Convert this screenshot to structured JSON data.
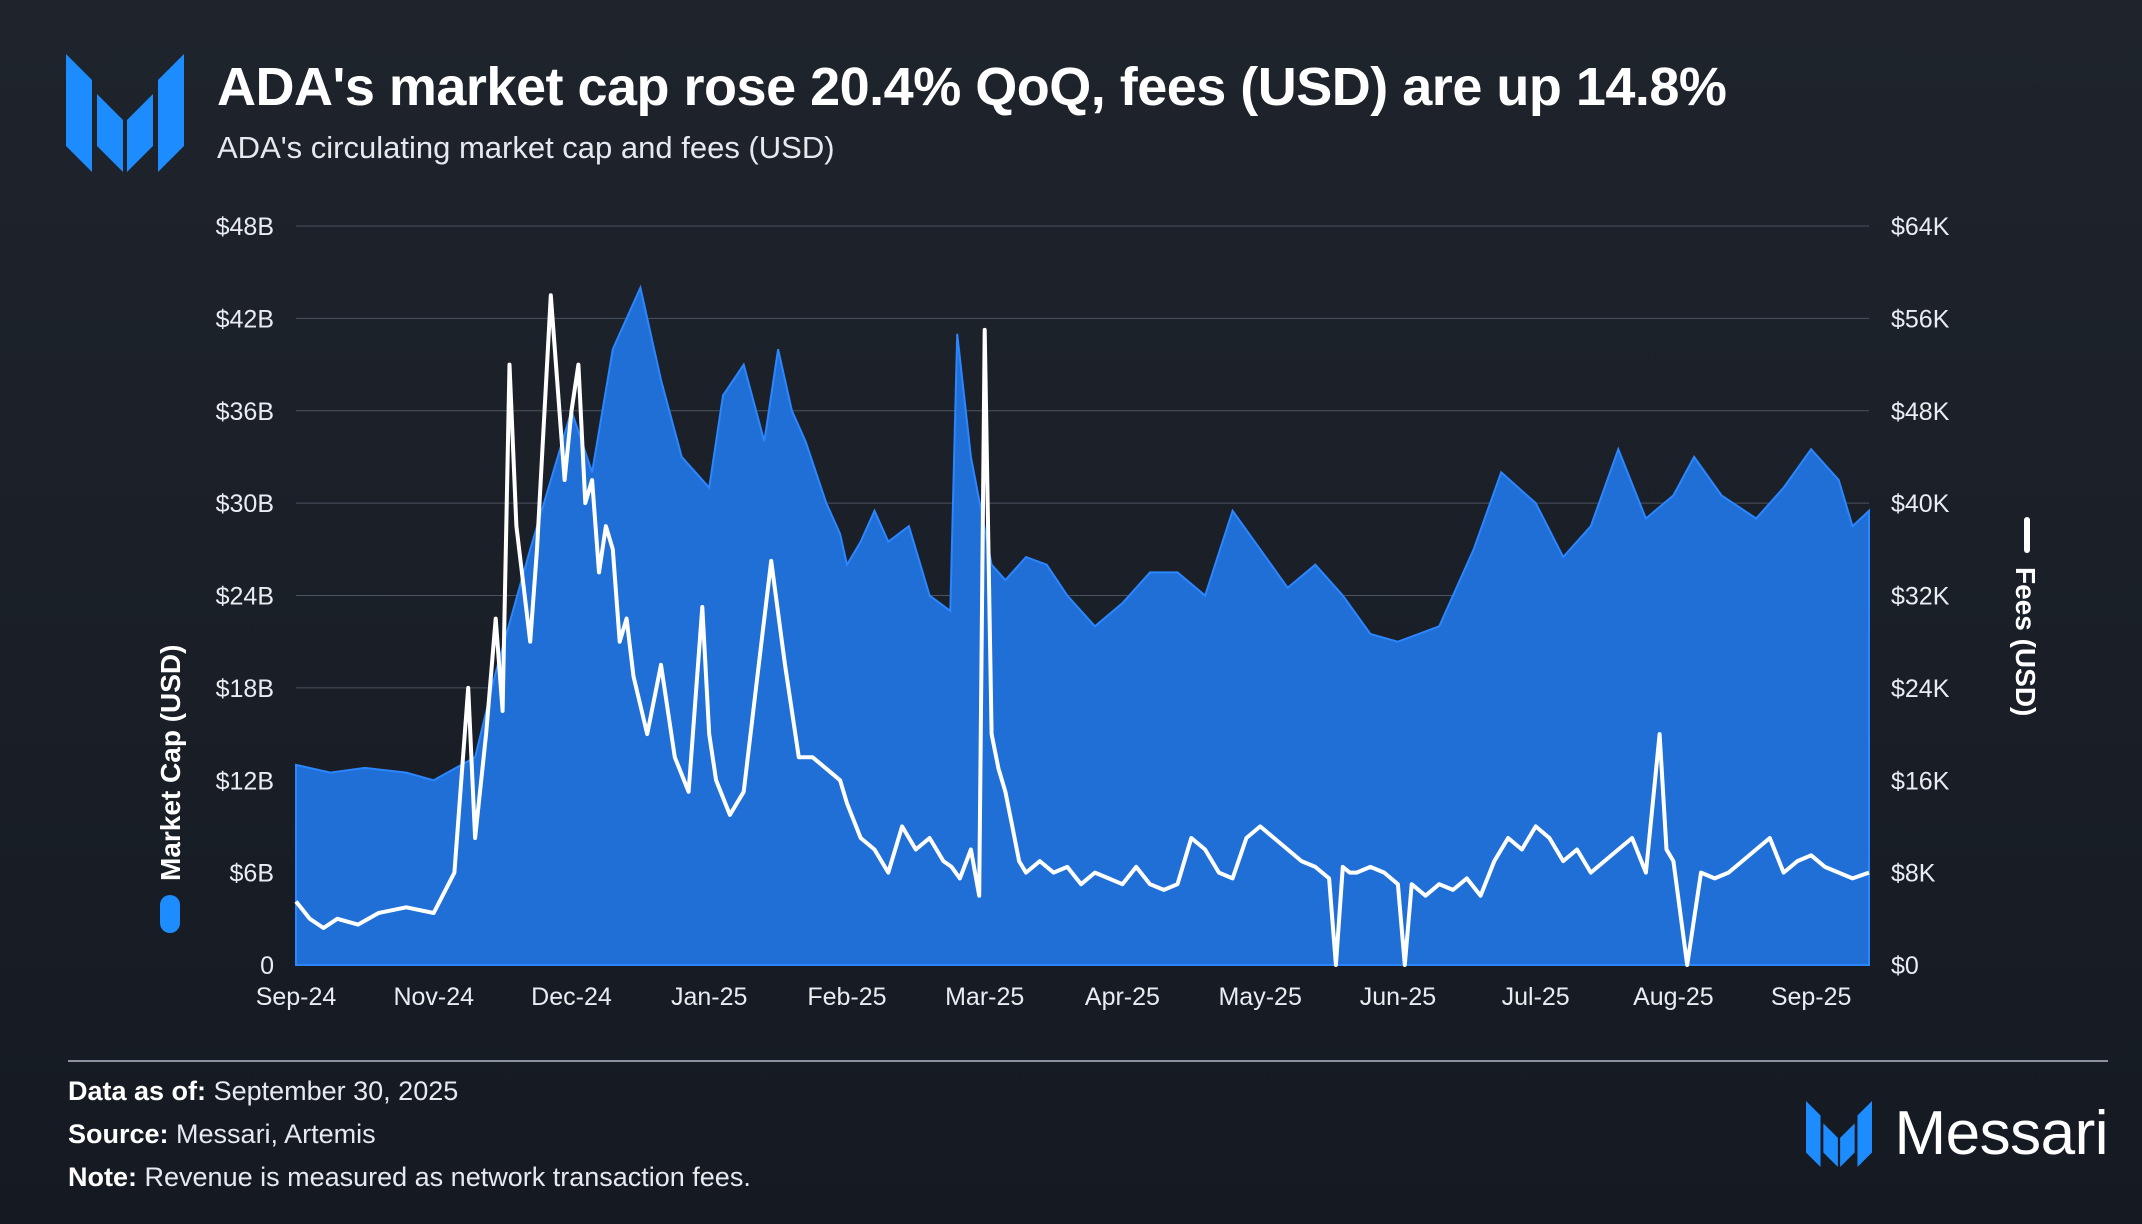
{
  "header": {
    "title": "ADA's market cap rose 20.4% QoQ, fees (USD) are up 14.8%",
    "subtitle": "ADA's circulating market cap and fees (USD)"
  },
  "colors": {
    "market_cap": "#1f6fd6",
    "market_cap_edge": "#2b86ff",
    "fees": "#ffffff",
    "brand_blue": "#1d8cff"
  },
  "chart_data": {
    "type": "area",
    "title": "ADA's circulating market cap and fees (USD)",
    "categories": [
      "Sep-24",
      "Nov-24",
      "Dec-24",
      "Jan-25",
      "Feb-25",
      "Mar-25",
      "Apr-25",
      "May-25",
      "Jun-25",
      "Jul-25",
      "Aug-25",
      "Sep-25"
    ],
    "ylabel": "Market Cap (USD)",
    "y2label": "Fees (USD)",
    "ylim": [
      0,
      48
    ],
    "y2lim": [
      0,
      64
    ],
    "yticks": [
      "0",
      "$6B",
      "$12B",
      "$18B",
      "$24B",
      "$30B",
      "$36B",
      "$42B",
      "$48B"
    ],
    "y2ticks": [
      "$0",
      "$8K",
      "$16K",
      "$24K",
      "$32K",
      "$40K",
      "$48K",
      "$56K",
      "$64K"
    ],
    "grid": true,
    "series": [
      {
        "name": "Market Cap (USD)",
        "unit": "$B",
        "axis": "left",
        "type": "area",
        "x": [
          0,
          0.25,
          0.5,
          0.8,
          1.0,
          1.3,
          1.45,
          1.7,
          2.0,
          2.15,
          2.3,
          2.5,
          2.65,
          2.8,
          3.0,
          3.1,
          3.25,
          3.4,
          3.5,
          3.6,
          3.7,
          3.85,
          3.95,
          4.0,
          4.1,
          4.2,
          4.3,
          4.45,
          4.6,
          4.75,
          4.8,
          4.9,
          5.05,
          5.15,
          5.3,
          5.45,
          5.6,
          5.8,
          6.0,
          6.2,
          6.4,
          6.6,
          6.8,
          7.0,
          7.2,
          7.4,
          7.6,
          7.8,
          8.0,
          8.3,
          8.55,
          8.75,
          9.0,
          9.2,
          9.4,
          9.6,
          9.8,
          10.0,
          10.15,
          10.35,
          10.6,
          10.8,
          11.0,
          11.2,
          11.3,
          11.42
        ],
        "values": [
          13.0,
          12.5,
          12.8,
          12.5,
          12.0,
          13.5,
          19.0,
          27.0,
          36.0,
          32.0,
          40.0,
          44.0,
          38.0,
          33.0,
          31.0,
          37.0,
          39.0,
          34.0,
          40.0,
          36.0,
          34.0,
          30.0,
          28.0,
          26.0,
          27.5,
          29.5,
          27.5,
          28.5,
          24.0,
          23.0,
          41.0,
          33.0,
          26.0,
          25.0,
          26.5,
          26.0,
          24.0,
          22.0,
          23.5,
          25.5,
          25.5,
          24.0,
          29.5,
          27.0,
          24.5,
          26.0,
          24.0,
          21.5,
          21.0,
          22.0,
          27.0,
          32.0,
          30.0,
          26.5,
          28.5,
          33.5,
          29.0,
          30.5,
          33.0,
          30.5,
          29.0,
          31.0,
          33.5,
          31.5,
          28.5,
          29.5
        ]
      },
      {
        "name": "Fees (USD)",
        "unit": "$K",
        "axis": "right",
        "type": "line",
        "x": [
          0,
          0.1,
          0.2,
          0.3,
          0.45,
          0.6,
          0.8,
          1.0,
          1.15,
          1.25,
          1.3,
          1.38,
          1.45,
          1.5,
          1.55,
          1.6,
          1.7,
          1.75,
          1.85,
          1.95,
          2.0,
          2.05,
          2.1,
          2.15,
          2.2,
          2.25,
          2.3,
          2.35,
          2.4,
          2.45,
          2.55,
          2.65,
          2.75,
          2.85,
          2.95,
          3.0,
          3.05,
          3.15,
          3.25,
          3.35,
          3.45,
          3.55,
          3.65,
          3.75,
          3.85,
          3.95,
          4.0,
          4.1,
          4.2,
          4.3,
          4.4,
          4.5,
          4.6,
          4.7,
          4.76,
          4.82,
          4.9,
          4.96,
          5.0,
          5.05,
          5.1,
          5.15,
          5.2,
          5.25,
          5.3,
          5.4,
          5.5,
          5.6,
          5.7,
          5.8,
          5.9,
          6.0,
          6.1,
          6.2,
          6.3,
          6.4,
          6.5,
          6.6,
          6.7,
          6.8,
          6.9,
          7.0,
          7.1,
          7.2,
          7.3,
          7.4,
          7.5,
          7.55,
          7.6,
          7.65,
          7.7,
          7.8,
          7.9,
          8.0,
          8.05,
          8.1,
          8.2,
          8.3,
          8.4,
          8.5,
          8.6,
          8.7,
          8.8,
          8.9,
          9.0,
          9.1,
          9.2,
          9.3,
          9.4,
          9.5,
          9.6,
          9.7,
          9.8,
          9.9,
          9.95,
          10.0,
          10.1,
          10.2,
          10.3,
          10.4,
          10.5,
          10.6,
          10.7,
          10.8,
          10.9,
          11.0,
          11.1,
          11.2,
          11.3,
          11.42
        ],
        "values": [
          5.5,
          4.0,
          3.2,
          4.0,
          3.5,
          4.5,
          5.0,
          4.5,
          8.0,
          24.0,
          11.0,
          20.0,
          30.0,
          22.0,
          52.0,
          38.0,
          28.0,
          36.0,
          58.0,
          42.0,
          48.0,
          52.0,
          40.0,
          42.0,
          34.0,
          38.0,
          36.0,
          28.0,
          30.0,
          25.0,
          20.0,
          26.0,
          18.0,
          15.0,
          31.0,
          20.0,
          16.0,
          13.0,
          15.0,
          25.0,
          35.0,
          26.0,
          18.0,
          18.0,
          17.0,
          16.0,
          14.0,
          11.0,
          10.0,
          8.0,
          12.0,
          10.0,
          11.0,
          9.0,
          8.5,
          7.5,
          10.0,
          6.0,
          55.0,
          20.0,
          17.0,
          15.0,
          12.0,
          9.0,
          8.0,
          9.0,
          8.0,
          8.5,
          7.0,
          8.0,
          7.5,
          7.0,
          8.5,
          7.0,
          6.5,
          7.0,
          11.0,
          10.0,
          8.0,
          7.5,
          11.0,
          12.0,
          11.0,
          10.0,
          9.0,
          8.5,
          7.5,
          0,
          8.5,
          8.0,
          8.0,
          8.5,
          8.0,
          7.0,
          0,
          7.0,
          6.0,
          7.0,
          6.5,
          7.5,
          6.0,
          9.0,
          11.0,
          10.0,
          12.0,
          11.0,
          9.0,
          10.0,
          8.0,
          9.0,
          10.0,
          11.0,
          8.0,
          20.0,
          10.0,
          9.0,
          0,
          8.0,
          7.5,
          8.0,
          9.0,
          10.0,
          11.0,
          8.0,
          9.0,
          9.5,
          8.5,
          8.0,
          7.5,
          8.0
        ]
      }
    ],
    "legend": "axis-titles"
  },
  "footer": {
    "data_as_of_label": "Data as of:",
    "data_as_of_value": "September 30, 2025",
    "source_label": "Source:",
    "source_value": "Messari, Artemis",
    "note_label": "Note:",
    "note_value": "Revenue is measured as network transaction fees.",
    "brand": "Messari"
  }
}
